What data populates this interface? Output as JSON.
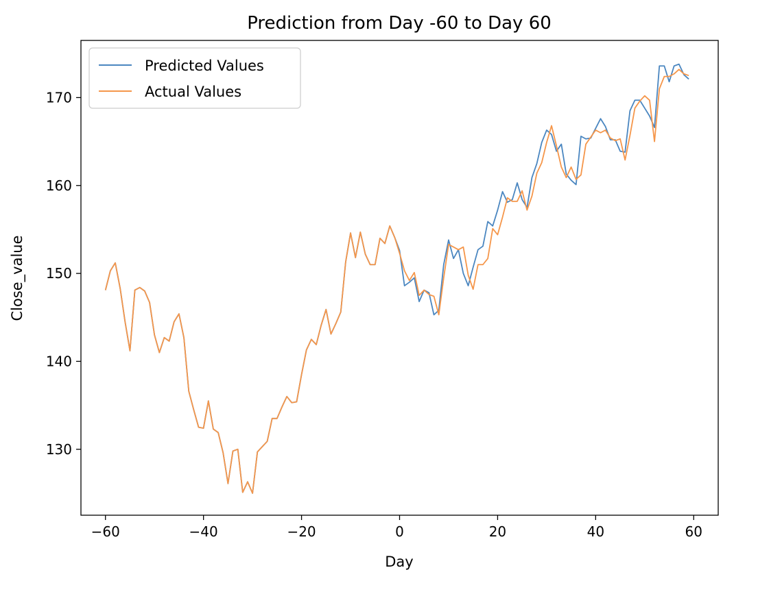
{
  "colors": {
    "predicted": "#4a86c0",
    "actual": "#f5964a",
    "axes": "#000000",
    "legend_border": "#cccccc"
  },
  "chart_data": {
    "type": "line",
    "title": "Prediction from Day -60 to Day 60",
    "xlabel": "Day",
    "ylabel": "Close_value",
    "xlim": [
      -65,
      65
    ],
    "ylim": [
      122.5,
      176.5
    ],
    "xticks": [
      -60,
      -40,
      -20,
      0,
      20,
      40,
      60
    ],
    "yticks": [
      130,
      140,
      150,
      160,
      170
    ],
    "grid": false,
    "legend_position": "top-left",
    "series": [
      {
        "name": "Predicted Values",
        "color_key": "predicted",
        "x": [
          -60,
          -59,
          -58,
          -57,
          -56,
          -55,
          -54,
          -53,
          -52,
          -51,
          -50,
          -49,
          -48,
          -47,
          -46,
          -45,
          -44,
          -43,
          -42,
          -41,
          -40,
          -39,
          -38,
          -37,
          -36,
          -35,
          -34,
          -33,
          -32,
          -31,
          -30,
          -29,
          -28,
          -27,
          -26,
          -25,
          -24,
          -23,
          -22,
          -21,
          -20,
          -19,
          -18,
          -17,
          -16,
          -15,
          -14,
          -13,
          -12,
          -11,
          -10,
          -9,
          -8,
          -7,
          -6,
          -5,
          -4,
          -3,
          -2,
          -1,
          0,
          1,
          2,
          3,
          4,
          5,
          6,
          7,
          8,
          9,
          10,
          11,
          12,
          13,
          14,
          15,
          16,
          17,
          18,
          19,
          20,
          21,
          22,
          23,
          24,
          25,
          26,
          27,
          28,
          29,
          30,
          31,
          32,
          33,
          34,
          35,
          36,
          37,
          38,
          39,
          40,
          41,
          42,
          43,
          44,
          45,
          46,
          47,
          48,
          49,
          50,
          51,
          52,
          53,
          54,
          55,
          56,
          57,
          58,
          59
        ],
        "y": [
          148.1,
          150.3,
          151.2,
          148.3,
          144.5,
          141.2,
          148.1,
          148.4,
          148.0,
          146.7,
          143.0,
          141.0,
          142.7,
          142.3,
          144.5,
          145.4,
          142.7,
          136.6,
          134.5,
          132.5,
          132.4,
          135.5,
          132.3,
          131.9,
          129.6,
          126.1,
          129.8,
          130.0,
          125.1,
          126.3,
          125.0,
          129.7,
          130.3,
          130.9,
          133.5,
          133.5,
          134.8,
          136.0,
          135.3,
          135.4,
          138.5,
          141.3,
          142.5,
          141.9,
          144.1,
          145.9,
          143.1,
          144.3,
          145.6,
          151.3,
          154.6,
          151.8,
          154.7,
          152.2,
          151.0,
          151.0,
          154.0,
          153.4,
          155.4,
          154.1,
          152.6,
          148.6,
          149.0,
          149.5,
          146.8,
          148.1,
          147.8,
          145.3,
          145.8,
          151.0,
          153.8,
          151.7,
          152.7,
          150.0,
          148.6,
          150.7,
          152.7,
          153.1,
          155.9,
          155.4,
          157.2,
          159.3,
          158.1,
          158.4,
          160.3,
          158.4,
          157.5,
          160.9,
          162.5,
          164.9,
          166.3,
          165.8,
          163.9,
          164.7,
          161.3,
          160.6,
          160.1,
          165.6,
          165.3,
          165.4,
          166.5,
          167.6,
          166.7,
          165.2,
          165.2,
          163.9,
          163.8,
          168.5,
          169.7,
          169.7,
          168.8,
          167.9,
          166.6,
          173.6,
          173.6,
          171.8,
          173.6,
          173.8,
          172.6,
          172.1
        ]
      },
      {
        "name": "Actual Values",
        "color_key": "actual",
        "x": [
          -60,
          -59,
          -58,
          -57,
          -56,
          -55,
          -54,
          -53,
          -52,
          -51,
          -50,
          -49,
          -48,
          -47,
          -46,
          -45,
          -44,
          -43,
          -42,
          -41,
          -40,
          -39,
          -38,
          -37,
          -36,
          -35,
          -34,
          -33,
          -32,
          -31,
          -30,
          -29,
          -28,
          -27,
          -26,
          -25,
          -24,
          -23,
          -22,
          -21,
          -20,
          -19,
          -18,
          -17,
          -16,
          -15,
          -14,
          -13,
          -12,
          -11,
          -10,
          -9,
          -8,
          -7,
          -6,
          -5,
          -4,
          -3,
          -2,
          -1,
          0,
          1,
          2,
          3,
          4,
          5,
          6,
          7,
          8,
          9,
          10,
          11,
          12,
          13,
          14,
          15,
          16,
          17,
          18,
          19,
          20,
          21,
          22,
          23,
          24,
          25,
          26,
          27,
          28,
          29,
          30,
          31,
          32,
          33,
          34,
          35,
          36,
          37,
          38,
          39,
          40,
          41,
          42,
          43,
          44,
          45,
          46,
          47,
          48,
          49,
          50,
          51,
          52,
          53,
          54,
          55,
          56,
          57,
          58,
          59
        ],
        "y": [
          148.1,
          150.3,
          151.2,
          148.3,
          144.5,
          141.2,
          148.1,
          148.4,
          148.0,
          146.7,
          143.0,
          141.0,
          142.7,
          142.3,
          144.5,
          145.4,
          142.7,
          136.6,
          134.5,
          132.5,
          132.4,
          135.5,
          132.3,
          131.9,
          129.6,
          126.1,
          129.8,
          130.0,
          125.1,
          126.3,
          125.0,
          129.7,
          130.3,
          130.9,
          133.5,
          133.5,
          134.8,
          136.0,
          135.3,
          135.4,
          138.5,
          141.3,
          142.5,
          141.9,
          144.1,
          145.9,
          143.1,
          144.3,
          145.6,
          151.3,
          154.6,
          151.8,
          154.7,
          152.2,
          151.0,
          151.0,
          154.0,
          153.4,
          155.4,
          154.1,
          152.3,
          150.3,
          149.2,
          150.1,
          147.5,
          148.1,
          147.6,
          147.4,
          145.3,
          149.5,
          153.3,
          153.0,
          152.7,
          153.0,
          149.8,
          148.2,
          151.0,
          151.0,
          151.7,
          155.1,
          154.4,
          156.4,
          158.6,
          158.2,
          158.2,
          159.4,
          157.2,
          158.8,
          161.4,
          162.6,
          164.9,
          166.8,
          164.5,
          162.1,
          160.9,
          162.1,
          160.7,
          161.2,
          164.7,
          165.5,
          166.3,
          166.0,
          166.3,
          165.4,
          165.1,
          165.3,
          162.9,
          165.7,
          168.8,
          169.6,
          170.2,
          169.7,
          165.0,
          171.0,
          172.4,
          172.4,
          172.7,
          173.2,
          172.7,
          172.5
        ]
      }
    ]
  }
}
